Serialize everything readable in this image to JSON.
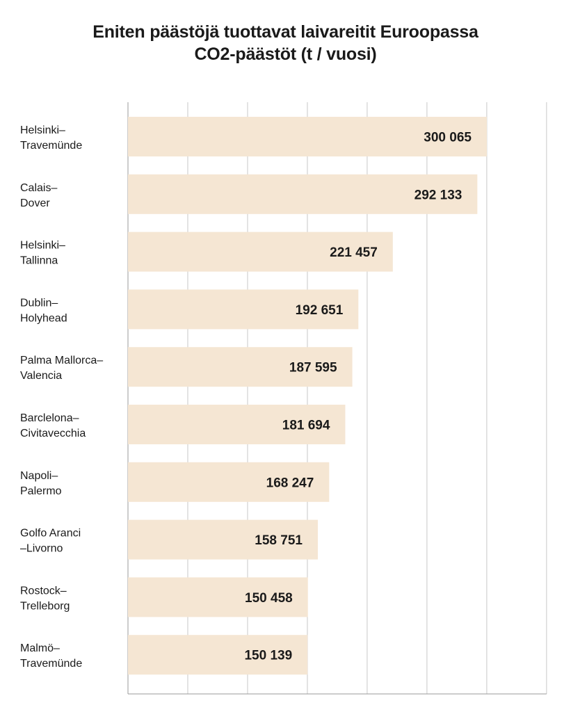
{
  "chart_data": {
    "type": "bar",
    "orientation": "horizontal",
    "title": "Eniten päästöjä tuottavat laivareitit Euroopassa",
    "subtitle": "CO2-päästöt (t / vuosi)",
    "categories": [
      [
        "Helsinki–",
        "Travemünde"
      ],
      [
        "Calais–",
        "Dover"
      ],
      [
        "Helsinki–",
        "Tallinna"
      ],
      [
        "Dublin–",
        "Holyhead"
      ],
      [
        "Palma Mallorca–",
        "Valencia"
      ],
      [
        "Barclelona–",
        "Civitavecchia"
      ],
      [
        "Napoli–",
        "Palermo"
      ],
      [
        "Golfo Aranci",
        "–Livorno"
      ],
      [
        "Rostock–",
        "Trelleborg"
      ],
      [
        "Malmö–",
        "Travemünde"
      ]
    ],
    "values": [
      300065,
      292133,
      221457,
      192651,
      187595,
      181694,
      168247,
      158751,
      150458,
      150139
    ],
    "value_labels": [
      "300 065",
      "292 133",
      "221 457",
      "192 651",
      "187 595",
      "181 694",
      "168 247",
      "158 751",
      "150 458",
      "150 139"
    ],
    "xlim": [
      0,
      350000
    ],
    "grid_step": 50000,
    "grid": true,
    "bar_color": "#f5e6d3",
    "grid_color": "#c8c8c8"
  }
}
